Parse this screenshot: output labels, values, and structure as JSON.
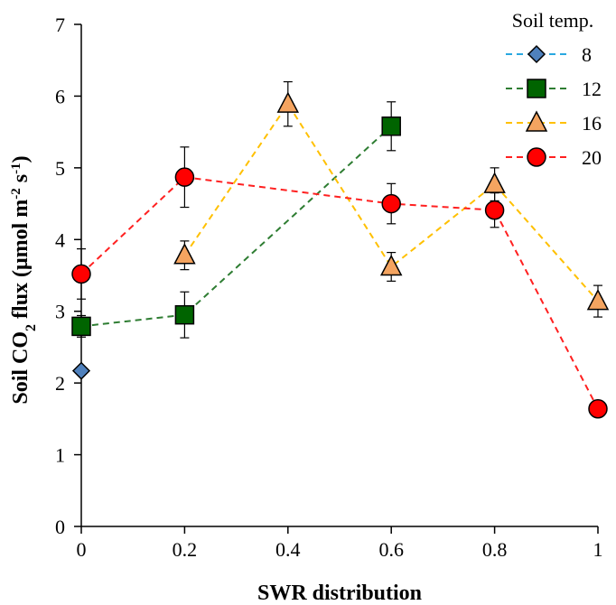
{
  "chart_data": {
    "type": "line",
    "xlabel": "SWR distribution",
    "ylabel_parts": [
      "Soil CO",
      "2",
      " flux (μmol m",
      "-2",
      " s",
      "-1",
      ")"
    ],
    "xlim": [
      0,
      1
    ],
    "ylim": [
      0,
      7
    ],
    "x_ticks": [
      0,
      0.2,
      0.4,
      0.6,
      0.8,
      1
    ],
    "x_tick_labels": [
      "0",
      "0.2",
      "0.4",
      "0.6",
      "0.8",
      "1"
    ],
    "y_ticks": [
      0,
      1,
      2,
      3,
      4,
      5,
      6,
      7
    ],
    "y_tick_labels": [
      "0",
      "1",
      "2",
      "3",
      "4",
      "5",
      "6",
      "7"
    ],
    "grid": false,
    "legend_title": "Soil temp.",
    "legend_position": "top-right",
    "series": [
      {
        "name": "8",
        "color": "#29A8E0",
        "marker": "diamond",
        "marker_fill": "#4F81BD",
        "points": [
          {
            "x": 0,
            "y": 2.17,
            "err": 0
          }
        ]
      },
      {
        "name": "12",
        "color": "#2E7D32",
        "marker": "square",
        "marker_fill": "#006400",
        "points": [
          {
            "x": 0,
            "y": 2.79,
            "err": 0.15
          },
          {
            "x": 0.2,
            "y": 2.95,
            "err": 0.32
          },
          {
            "x": 0.6,
            "y": 5.58,
            "err": 0.34
          }
        ]
      },
      {
        "name": "16",
        "color": "#FFC000",
        "marker": "triangle",
        "marker_fill": "#F4A460",
        "points": [
          {
            "x": 0.2,
            "y": 3.78,
            "err": 0.2
          },
          {
            "x": 0.4,
            "y": 5.89,
            "err": 0.31
          },
          {
            "x": 0.6,
            "y": 3.62,
            "err": 0.2
          },
          {
            "x": 0.8,
            "y": 4.77,
            "err": 0.23
          },
          {
            "x": 1,
            "y": 3.14,
            "err": 0.22
          }
        ]
      },
      {
        "name": "20",
        "color": "#FF2020",
        "marker": "circle",
        "marker_fill": "#FF0000",
        "points": [
          {
            "x": 0,
            "y": 3.52,
            "err": 0.35
          },
          {
            "x": 0.2,
            "y": 4.87,
            "err": 0.42
          },
          {
            "x": 0.6,
            "y": 4.5,
            "err": 0.28
          },
          {
            "x": 0.8,
            "y": 4.41,
            "err": 0.24
          },
          {
            "x": 1,
            "y": 1.64,
            "err": 0
          }
        ]
      }
    ]
  }
}
